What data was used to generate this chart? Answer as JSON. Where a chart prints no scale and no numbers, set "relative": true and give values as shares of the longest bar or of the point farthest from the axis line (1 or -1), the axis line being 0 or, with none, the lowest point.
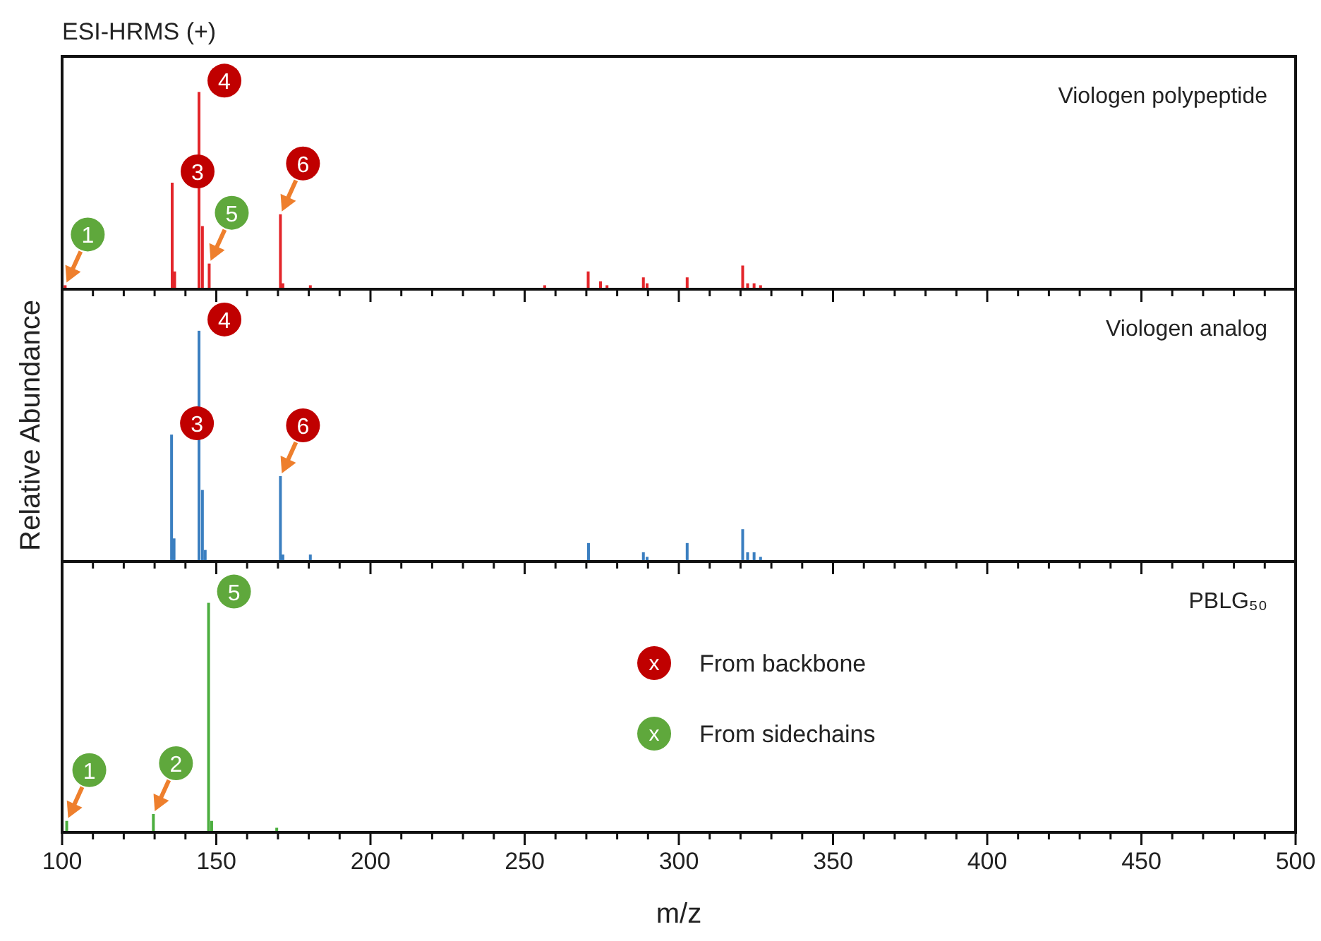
{
  "chart_data": [
    {
      "type": "bar",
      "title": "ESI-HRMS (+)",
      "subtitle": "Viologen polypeptide",
      "relative": true,
      "xlim": [
        100,
        500
      ],
      "xticks": [
        100,
        {
          "value": 110,
          "label": null
        },
        {
          "value": 120,
          "label": null
        },
        {
          "value": 130,
          "label": null
        },
        {
          "value": 140,
          "label": null
        },
        150,
        {
          "value": 160,
          "label": null
        },
        {
          "value": 170,
          "label": null
        },
        {
          "value": 180,
          "label": null
        },
        {
          "value": 190,
          "label": null
        },
        200,
        {
          "value": 210,
          "label": null
        },
        {
          "value": 220,
          "label": null
        },
        {
          "value": 230,
          "label": null
        },
        {
          "value": 240,
          "label": null
        },
        250,
        {
          "value": 260,
          "label": null
        },
        {
          "value": 270,
          "label": null
        },
        {
          "value": 280,
          "label": null
        },
        {
          "value": 290,
          "label": null
        },
        300,
        {
          "value": 310,
          "label": null
        },
        {
          "value": 320,
          "label": null
        },
        {
          "value": 330,
          "label": null
        },
        {
          "value": 340,
          "label": null
        },
        350,
        {
          "value": 360,
          "label": null
        },
        {
          "value": 370,
          "label": null
        },
        {
          "value": 380,
          "label": null
        },
        {
          "value": 390,
          "label": null
        },
        400,
        {
          "value": 410,
          "label": null
        },
        {
          "value": 420,
          "label": null
        },
        {
          "value": 430,
          "label": null
        },
        {
          "value": 440,
          "label": null
        },
        450,
        {
          "value": 460,
          "label": null
        },
        {
          "value": 470,
          "label": null
        },
        {
          "value": 480,
          "label": null
        },
        {
          "value": 490,
          "label": null
        },
        500
      ],
      "tick_labels": false,
      "x": [
        101,
        135.7,
        136.5,
        144.4,
        145.5,
        147.7,
        170.8,
        171.6,
        180.5,
        256.5,
        270.6,
        274.6,
        276.7,
        288.5,
        289.7,
        302.7,
        320.7,
        322.3,
        324.4,
        326.5
      ],
      "series": [
        {
          "color": "#e3262b",
          "values": [
            0.02,
            0.54,
            0.09,
            1,
            0.32,
            0.13,
            0.38,
            0.03,
            0.02,
            0.02,
            0.09,
            0.04,
            0.02,
            0.06,
            0.03,
            0.06,
            0.12,
            0.03,
            0.03,
            0.02
          ]
        }
      ],
      "annotations": [
        {
          "text": "1",
          "x": 101,
          "y": 0.02
        },
        {
          "text": "3",
          "x": 135.7,
          "y": 0.54
        },
        {
          "text": "4",
          "x": 144.4,
          "y": 1
        },
        {
          "text": "5",
          "x": 147.7,
          "y": 0.13
        },
        {
          "text": "6",
          "x": 170.8,
          "y": 0.38
        }
      ]
    },
    {
      "type": "bar",
      "subtitle": "Viologen analog",
      "ylabel": "Relative Abundance",
      "relative": true,
      "xlim": [
        100,
        500
      ],
      "xticks": [
        100,
        {
          "value": 110,
          "label": null
        },
        {
          "value": 120,
          "label": null
        },
        {
          "value": 130,
          "label": null
        },
        {
          "value": 140,
          "label": null
        },
        150,
        {
          "value": 160,
          "label": null
        },
        {
          "value": 170,
          "label": null
        },
        {
          "value": 180,
          "label": null
        },
        {
          "value": 190,
          "label": null
        },
        200,
        {
          "value": 210,
          "label": null
        },
        {
          "value": 220,
          "label": null
        },
        {
          "value": 230,
          "label": null
        },
        {
          "value": 240,
          "label": null
        },
        250,
        {
          "value": 260,
          "label": null
        },
        {
          "value": 270,
          "label": null
        },
        {
          "value": 280,
          "label": null
        },
        {
          "value": 290,
          "label": null
        },
        300,
        {
          "value": 310,
          "label": null
        },
        {
          "value": 320,
          "label": null
        },
        {
          "value": 330,
          "label": null
        },
        {
          "value": 340,
          "label": null
        },
        350,
        {
          "value": 360,
          "label": null
        },
        {
          "value": 370,
          "label": null
        },
        {
          "value": 380,
          "label": null
        },
        {
          "value": 390,
          "label": null
        },
        400,
        {
          "value": 410,
          "label": null
        },
        {
          "value": 420,
          "label": null
        },
        {
          "value": 430,
          "label": null
        },
        {
          "value": 440,
          "label": null
        },
        450,
        {
          "value": 460,
          "label": null
        },
        {
          "value": 470,
          "label": null
        },
        {
          "value": 480,
          "label": null
        },
        {
          "value": 490,
          "label": null
        },
        500
      ],
      "tick_labels": false,
      "x": [
        135.5,
        136.3,
        144.4,
        145.5,
        146.4,
        170.8,
        171.6,
        180.5,
        270.7,
        288.5,
        289.7,
        302.7,
        320.7,
        322.3,
        324.4,
        326.5
      ],
      "series": [
        {
          "color": "#3b7fc0",
          "values": [
            0.55,
            0.1,
            1,
            0.31,
            0.05,
            0.37,
            0.03,
            0.03,
            0.08,
            0.04,
            0.02,
            0.08,
            0.14,
            0.04,
            0.04,
            0.02
          ]
        }
      ],
      "annotations": [
        {
          "text": "3",
          "x": 135.5,
          "y": 0.55
        },
        {
          "text": "4",
          "x": 144.4,
          "y": 1
        },
        {
          "text": "6",
          "x": 170.8,
          "y": 0.37
        }
      ]
    },
    {
      "type": "bar",
      "subtitle": "PBLG₅₀",
      "xlabel": "m/z",
      "relative": true,
      "xlim": [
        100,
        500
      ],
      "xticks": [
        100,
        {
          "value": 110,
          "label": null
        },
        {
          "value": 120,
          "label": null
        },
        {
          "value": 130,
          "label": null
        },
        {
          "value": 140,
          "label": null
        },
        150,
        {
          "value": 160,
          "label": null
        },
        {
          "value": 170,
          "label": null
        },
        {
          "value": 180,
          "label": null
        },
        {
          "value": 190,
          "label": null
        },
        200,
        {
          "value": 210,
          "label": null
        },
        {
          "value": 220,
          "label": null
        },
        {
          "value": 230,
          "label": null
        },
        {
          "value": 240,
          "label": null
        },
        250,
        {
          "value": 260,
          "label": null
        },
        {
          "value": 270,
          "label": null
        },
        {
          "value": 280,
          "label": null
        },
        {
          "value": 290,
          "label": null
        },
        300,
        {
          "value": 310,
          "label": null
        },
        {
          "value": 320,
          "label": null
        },
        {
          "value": 330,
          "label": null
        },
        {
          "value": 340,
          "label": null
        },
        350,
        {
          "value": 360,
          "label": null
        },
        {
          "value": 370,
          "label": null
        },
        {
          "value": 380,
          "label": null
        },
        {
          "value": 390,
          "label": null
        },
        400,
        {
          "value": 410,
          "label": null
        },
        {
          "value": 420,
          "label": null
        },
        {
          "value": 430,
          "label": null
        },
        {
          "value": 440,
          "label": null
        },
        450,
        {
          "value": 460,
          "label": null
        },
        {
          "value": 470,
          "label": null
        },
        {
          "value": 480,
          "label": null
        },
        {
          "value": 490,
          "label": null
        },
        500
      ],
      "tick_labels": "x",
      "x": [
        101.5,
        129.6,
        147.5,
        148.5,
        169.6
      ],
      "series": [
        {
          "color": "#4cae3f",
          "values": [
            0.05,
            0.08,
            1,
            0.05,
            0.02
          ]
        }
      ],
      "annotations": [
        {
          "text": "1",
          "x": 101.5,
          "y": 0.05
        },
        {
          "text": "2",
          "x": 129.6,
          "y": 0.08
        },
        {
          "text": "5",
          "x": 147.5,
          "y": 1
        },
        "x",
        "From backbone",
        "x",
        "From sidechains"
      ]
    }
  ]
}
